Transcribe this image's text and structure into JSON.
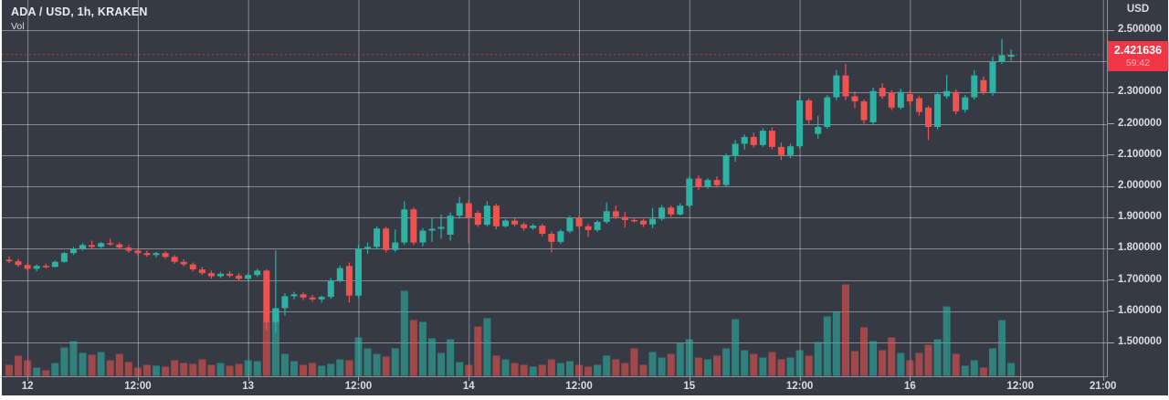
{
  "legend": {
    "title": "ADA / USD, 1h, KRAKEN",
    "volume_label": "Vol"
  },
  "price_axis": {
    "unit": "USD",
    "tick_values": [
      2.5,
      2.4,
      2.3,
      2.2,
      2.1,
      2.0,
      1.9,
      1.8,
      1.7,
      1.6,
      1.5
    ],
    "decimals": 6,
    "current_price": "2.421636",
    "countdown": "59:42"
  },
  "time_axis": {
    "ticks": [
      {
        "label": "12",
        "i": 2
      },
      {
        "label": "12:00",
        "i": 14
      },
      {
        "label": "13",
        "i": 26
      },
      {
        "label": "12:00",
        "i": 38
      },
      {
        "label": "14",
        "i": 50
      },
      {
        "label": "12:00",
        "i": 62
      },
      {
        "label": "15",
        "i": 74
      },
      {
        "label": "12:00",
        "i": 86
      },
      {
        "label": "16",
        "i": 98
      },
      {
        "label": "12:00",
        "i": 110
      },
      {
        "label": "21:00",
        "i": 119
      }
    ]
  },
  "colors": {
    "background": "#363a45",
    "grid": "rgba(255,255,255,0.40)",
    "up": "#2cb3a4",
    "down": "#ef5350",
    "price_line": "#f23645",
    "price_tag_bg": "#f23645",
    "axis_text": "#dcdde1"
  },
  "chart_data": {
    "type": "candlestick_with_volume",
    "symbol": "ADA / USD",
    "interval": "1h",
    "exchange": "KRAKEN",
    "title": "ADA / USD, 1h, KRAKEN",
    "ylabel": "USD",
    "ylim_axis_ticks": [
      1.5,
      2.5
    ],
    "grid": true,
    "current_price": 2.421636,
    "countdown": "59:42",
    "candles_format": [
      "open",
      "high",
      "low",
      "close",
      "volume_rel"
    ],
    "candles": [
      [
        1.765,
        1.776,
        1.754,
        1.76,
        12
      ],
      [
        1.76,
        1.768,
        1.742,
        1.748,
        22
      ],
      [
        1.748,
        1.756,
        1.73,
        1.736,
        17
      ],
      [
        1.736,
        1.75,
        1.728,
        1.745,
        9
      ],
      [
        1.745,
        1.752,
        1.738,
        1.742,
        6
      ],
      [
        1.742,
        1.762,
        1.74,
        1.758,
        14
      ],
      [
        1.758,
        1.79,
        1.755,
        1.786,
        31
      ],
      [
        1.786,
        1.806,
        1.78,
        1.8,
        38
      ],
      [
        1.8,
        1.818,
        1.794,
        1.812,
        25
      ],
      [
        1.812,
        1.826,
        1.8,
        1.806,
        23
      ],
      [
        1.806,
        1.822,
        1.802,
        1.818,
        26
      ],
      [
        1.818,
        1.832,
        1.81,
        1.814,
        17
      ],
      [
        1.814,
        1.82,
        1.798,
        1.804,
        24
      ],
      [
        1.804,
        1.812,
        1.788,
        1.794,
        15
      ],
      [
        1.794,
        1.8,
        1.778,
        1.786,
        9
      ],
      [
        1.786,
        1.794,
        1.774,
        1.78,
        12
      ],
      [
        1.78,
        1.79,
        1.772,
        1.786,
        11
      ],
      [
        1.786,
        1.792,
        1.768,
        1.774,
        10
      ],
      [
        1.774,
        1.78,
        1.752,
        1.758,
        17
      ],
      [
        1.758,
        1.766,
        1.744,
        1.75,
        14
      ],
      [
        1.75,
        1.756,
        1.728,
        1.734,
        13
      ],
      [
        1.734,
        1.742,
        1.716,
        1.722,
        18
      ],
      [
        1.722,
        1.73,
        1.704,
        1.712,
        12
      ],
      [
        1.712,
        1.726,
        1.706,
        1.72,
        14
      ],
      [
        1.72,
        1.728,
        1.708,
        1.714,
        11
      ],
      [
        1.714,
        1.722,
        1.698,
        1.704,
        13
      ],
      [
        1.704,
        1.722,
        1.7,
        1.716,
        17
      ],
      [
        1.716,
        1.736,
        1.71,
        1.73,
        16
      ],
      [
        1.73,
        1.734,
        1.54,
        1.565,
        60
      ],
      [
        1.565,
        1.795,
        1.53,
        1.61,
        72
      ],
      [
        1.61,
        1.658,
        1.586,
        1.648,
        24
      ],
      [
        1.648,
        1.662,
        1.638,
        1.654,
        16
      ],
      [
        1.654,
        1.66,
        1.636,
        1.644,
        12
      ],
      [
        1.644,
        1.652,
        1.63,
        1.638,
        14
      ],
      [
        1.638,
        1.65,
        1.628,
        1.646,
        11
      ],
      [
        1.646,
        1.706,
        1.64,
        1.698,
        13
      ],
      [
        1.698,
        1.746,
        1.692,
        1.738,
        18
      ],
      [
        1.745,
        1.756,
        1.628,
        1.65,
        17
      ],
      [
        1.65,
        1.812,
        1.642,
        1.8,
        42
      ],
      [
        1.8,
        1.82,
        1.784,
        1.806,
        30
      ],
      [
        1.806,
        1.872,
        1.798,
        1.865,
        24
      ],
      [
        1.865,
        1.87,
        1.788,
        1.796,
        21
      ],
      [
        1.796,
        1.862,
        1.79,
        1.82,
        30
      ],
      [
        1.82,
        1.952,
        1.812,
        1.926,
        93
      ],
      [
        1.926,
        1.932,
        1.812,
        1.82,
        61
      ],
      [
        1.82,
        1.866,
        1.808,
        1.858,
        59
      ],
      [
        1.858,
        1.9,
        1.822,
        1.864,
        41
      ],
      [
        1.864,
        1.91,
        1.832,
        1.87,
        25
      ],
      [
        1.845,
        1.916,
        1.826,
        1.906,
        40
      ],
      [
        1.906,
        1.966,
        1.896,
        1.946,
        15
      ],
      [
        1.946,
        1.956,
        1.816,
        1.9,
        12
      ],
      [
        1.915,
        1.922,
        1.87,
        1.877,
        54
      ],
      [
        1.877,
        1.952,
        1.872,
        1.938,
        63
      ],
      [
        1.938,
        1.944,
        1.862,
        1.872,
        22
      ],
      [
        1.872,
        1.896,
        1.868,
        1.89,
        18
      ],
      [
        1.89,
        1.898,
        1.872,
        1.878,
        14
      ],
      [
        1.878,
        1.884,
        1.858,
        1.866,
        12
      ],
      [
        1.866,
        1.88,
        1.86,
        1.874,
        10
      ],
      [
        1.874,
        1.88,
        1.84,
        1.848,
        12
      ],
      [
        1.848,
        1.856,
        1.788,
        1.822,
        18
      ],
      [
        1.822,
        1.862,
        1.815,
        1.856,
        14
      ],
      [
        1.856,
        1.906,
        1.85,
        1.898,
        16
      ],
      [
        1.898,
        1.906,
        1.864,
        1.872,
        12
      ],
      [
        1.872,
        1.88,
        1.838,
        1.86,
        10
      ],
      [
        1.86,
        1.892,
        1.854,
        1.886,
        12
      ],
      [
        1.886,
        1.948,
        1.88,
        1.92,
        22
      ],
      [
        1.92,
        1.938,
        1.896,
        1.902,
        18
      ],
      [
        1.902,
        1.918,
        1.868,
        1.892,
        14
      ],
      [
        1.892,
        1.9,
        1.884,
        1.89,
        30
      ],
      [
        1.89,
        1.896,
        1.87,
        1.878,
        12
      ],
      [
        1.878,
        1.93,
        1.866,
        1.896,
        26
      ],
      [
        1.896,
        1.94,
        1.89,
        1.932,
        20
      ],
      [
        1.932,
        1.938,
        1.902,
        1.91,
        24
      ],
      [
        1.91,
        1.946,
        1.906,
        1.938,
        36
      ],
      [
        1.938,
        2.032,
        1.932,
        2.025,
        40
      ],
      [
        2.025,
        2.036,
        1.988,
        1.998,
        20
      ],
      [
        1.998,
        2.026,
        1.992,
        2.02,
        18
      ],
      [
        2.02,
        2.032,
        1.996,
        2.004,
        22
      ],
      [
        2.004,
        2.106,
        1.998,
        2.098,
        30
      ],
      [
        2.098,
        2.148,
        2.078,
        2.136,
        62
      ],
      [
        2.136,
        2.166,
        2.118,
        2.158,
        28
      ],
      [
        2.158,
        2.172,
        2.124,
        2.132,
        24
      ],
      [
        2.132,
        2.186,
        2.126,
        2.178,
        20
      ],
      [
        2.178,
        2.188,
        2.118,
        2.126,
        26
      ],
      [
        2.126,
        2.14,
        2.084,
        2.1,
        18
      ],
      [
        2.1,
        2.136,
        2.09,
        2.128,
        20
      ],
      [
        2.128,
        2.292,
        2.12,
        2.275,
        28
      ],
      [
        2.275,
        2.282,
        2.2,
        2.212,
        22
      ],
      [
        2.168,
        2.226,
        2.152,
        2.19,
        37
      ],
      [
        2.19,
        2.292,
        2.184,
        2.285,
        65
      ],
      [
        2.285,
        2.372,
        2.276,
        2.355,
        70
      ],
      [
        2.355,
        2.392,
        2.276,
        2.288,
        100
      ],
      [
        2.288,
        2.304,
        2.25,
        2.272,
        27
      ],
      [
        2.272,
        2.278,
        2.2,
        2.212,
        53
      ],
      [
        2.205,
        2.316,
        2.196,
        2.305,
        38
      ],
      [
        2.315,
        2.33,
        2.28,
        2.288,
        28
      ],
      [
        2.3,
        2.308,
        2.244,
        2.252,
        42
      ],
      [
        2.252,
        2.312,
        2.246,
        2.302,
        25
      ],
      [
        2.295,
        2.306,
        2.26,
        2.272,
        17
      ],
      [
        2.282,
        2.29,
        2.226,
        2.238,
        25
      ],
      [
        2.252,
        2.258,
        2.148,
        2.19,
        34
      ],
      [
        2.19,
        2.302,
        2.182,
        2.295,
        40
      ],
      [
        2.288,
        2.356,
        2.28,
        2.305,
        76
      ],
      [
        2.302,
        2.31,
        2.23,
        2.24,
        24
      ],
      [
        2.245,
        2.292,
        2.236,
        2.285,
        11
      ],
      [
        2.285,
        2.372,
        2.278,
        2.355,
        17
      ],
      [
        2.34,
        2.352,
        2.294,
        2.302,
        9
      ],
      [
        2.298,
        2.416,
        2.29,
        2.4,
        30
      ],
      [
        2.4,
        2.472,
        2.392,
        2.42,
        61
      ],
      [
        2.415,
        2.438,
        2.402,
        2.4216,
        14
      ]
    ]
  }
}
